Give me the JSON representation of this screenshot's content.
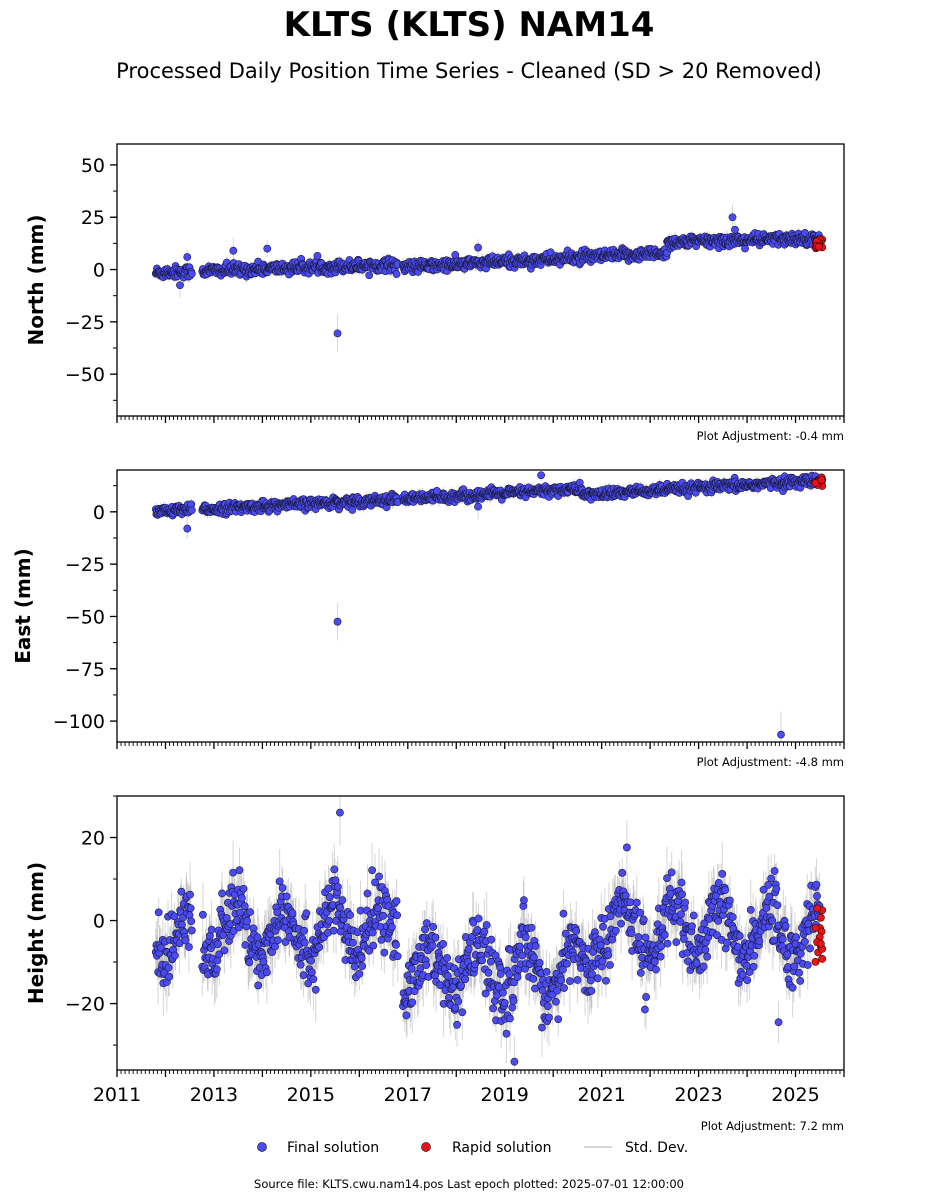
{
  "figure": {
    "title": "KLTS (KLTS) NAM14",
    "subtitle": "Processed Daily Position Time Series - Cleaned (SD > 20 Removed)",
    "footer": "Source file: KLTS.cwu.nam14.pos  Last epoch plotted: 2025-07-01 12:00:00"
  },
  "colors": {
    "final": "#4b4bf5",
    "rapid": "#e8141a",
    "stddev": "#8a8a8a",
    "axis": "#000000"
  },
  "legend": {
    "final_label": "Final solution",
    "rapid_label": "Rapid solution",
    "stddev_label": "Std. Dev."
  },
  "chart_data": [
    {
      "type": "scatter",
      "ylabel": "North (mm)",
      "adjustment": "Plot Adjustment: -0.4 mm",
      "xlim": [
        2011.0,
        2026.0
      ],
      "ylim": [
        -70,
        60
      ],
      "yticks": [
        50,
        25,
        0,
        -25,
        -50
      ],
      "ytick_labels": [
        "50",
        "25",
        "0",
        "−25",
        "−50"
      ],
      "trend": [
        {
          "x0": 2011.8,
          "x1": 2016.8,
          "y0": -1.5,
          "y1": 2.5
        },
        {
          "x0": 2016.9,
          "x1": 2022.35,
          "y0": 1.0,
          "y1": 8.0
        },
        {
          "x0": 2022.35,
          "x1": 2025.5,
          "y0": 13.0,
          "y1": 15.0
        }
      ],
      "scatter_sd": 1.4,
      "outliers": [
        {
          "x": 2015.55,
          "y": -30.5,
          "err": 9
        },
        {
          "x": 2013.4,
          "y": 9,
          "err": 6
        },
        {
          "x": 2014.1,
          "y": 10,
          "err": 4
        },
        {
          "x": 2018.45,
          "y": 10.5,
          "err": 4
        },
        {
          "x": 2012.45,
          "y": 6,
          "err": 4
        },
        {
          "x": 2012.3,
          "y": -7.5,
          "err": 6
        },
        {
          "x": 2023.7,
          "y": 25,
          "err": 6
        },
        {
          "x": 2023.75,
          "y": 19,
          "err": 5
        }
      ],
      "rapid_x": [
        2025.3,
        2025.5
      ],
      "rapid_y_range": [
        10,
        14.5
      ],
      "series": [
        {
          "name": "Final solution"
        },
        {
          "name": "Rapid solution"
        }
      ]
    },
    {
      "type": "scatter",
      "ylabel": "East (mm)",
      "adjustment": "Plot Adjustment: -4.8 mm",
      "xlim": [
        2011.0,
        2026.0
      ],
      "ylim": [
        -110,
        20
      ],
      "yticks": [
        0,
        -25,
        -50,
        -75,
        -100
      ],
      "ytick_labels": [
        "0",
        "−25",
        "−50",
        "−75",
        "−100"
      ],
      "trend": [
        {
          "x0": 2011.8,
          "x1": 2016.8,
          "y0": 0.0,
          "y1": 6.0
        },
        {
          "x0": 2016.9,
          "x1": 2020.6,
          "y0": 6.0,
          "y1": 11.0
        },
        {
          "x0": 2020.6,
          "x1": 2025.5,
          "y0": 8.0,
          "y1": 15.0
        }
      ],
      "scatter_sd": 1.2,
      "outliers": [
        {
          "x": 2015.55,
          "y": -52.5,
          "err": 9
        },
        {
          "x": 2024.7,
          "y": -106.5,
          "err": 11
        },
        {
          "x": 2019.75,
          "y": 17.5,
          "err": 3
        },
        {
          "x": 2018.45,
          "y": 2.5,
          "err": 6
        },
        {
          "x": 2012.45,
          "y": -8,
          "err": 5
        },
        {
          "x": 2017.6,
          "y": 10,
          "err": 3
        }
      ],
      "rapid_x": [
        2025.3,
        2025.5
      ],
      "rapid_y_range": [
        12,
        16.5
      ],
      "series": [
        {
          "name": "Final solution"
        },
        {
          "name": "Rapid solution"
        }
      ]
    },
    {
      "type": "scatter",
      "ylabel": "Height (mm)",
      "adjustment": "Plot Adjustment: 7.2 mm",
      "xlim": [
        2011.0,
        2026.0
      ],
      "ylim": [
        -36,
        30
      ],
      "yticks": [
        20,
        0,
        -20
      ],
      "ytick_labels": [
        "20",
        "0",
        "−20"
      ],
      "xticks": [
        2011,
        2013,
        2015,
        2017,
        2019,
        2021,
        2023,
        2025
      ],
      "xtick_labels": [
        "2011",
        "2013",
        "2015",
        "2017",
        "2019",
        "2021",
        "2023",
        "2025"
      ],
      "trend": [
        {
          "x0": 2011.8,
          "x1": 2016.8,
          "y0": -3.0,
          "y1": -2.0
        },
        {
          "x0": 2016.9,
          "x1": 2020.8,
          "y0": -12.0,
          "y1": -12.0
        },
        {
          "x0": 2020.8,
          "x1": 2025.5,
          "y0": -2.0,
          "y1": -3.0
        }
      ],
      "seasonal_amplitude": 6,
      "scatter_sd": 4.0,
      "outliers": [
        {
          "x": 2015.6,
          "y": 26,
          "err": 8
        },
        {
          "x": 2019.2,
          "y": -34,
          "err": 6
        },
        {
          "x": 2024.65,
          "y": -24.5,
          "err": 5
        }
      ],
      "rapid_x": [
        2025.3,
        2025.5
      ],
      "rapid_y_range": [
        -11,
        3
      ],
      "series": [
        {
          "name": "Final solution"
        },
        {
          "name": "Rapid solution"
        }
      ]
    }
  ]
}
